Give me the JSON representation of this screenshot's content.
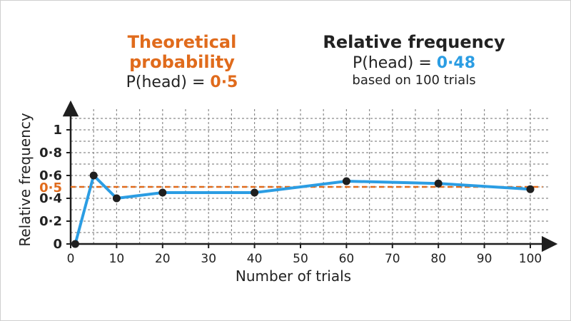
{
  "header": {
    "theory": {
      "title": "Theoretical probability",
      "eq_prefix": "P(head) = ",
      "eq_value": "0·5"
    },
    "relative": {
      "title": "Relative frequency",
      "eq_prefix": "P(head) = ",
      "eq_value": "0·48",
      "note": "based on 100 trials"
    }
  },
  "colors": {
    "line": "#2b9de3",
    "reference": "#e06b1c",
    "points": "#1f1f1f",
    "grid": "#8a8a8a",
    "axis": "#1f1f1f"
  },
  "chart_data": {
    "type": "line",
    "xlabel": "Number of trials",
    "ylabel": "Relative frequency",
    "xlim": [
      0,
      100
    ],
    "ylim": [
      0,
      1
    ],
    "grid": true,
    "x_ticks": [
      0,
      10,
      20,
      30,
      40,
      50,
      60,
      70,
      80,
      90,
      100
    ],
    "x_tick_labels": [
      "0",
      "10",
      "20",
      "30",
      "40",
      "50",
      "60",
      "70",
      "80",
      "90",
      "100"
    ],
    "y_ticks": [
      0,
      0.2,
      0.4,
      0.6,
      0.8,
      1
    ],
    "y_tick_labels": [
      "0",
      "0·2",
      "0·4",
      "0·6",
      "0·8",
      "1"
    ],
    "reference_line": {
      "y": 0.5,
      "label": "0·5"
    },
    "series": [
      {
        "x": [
          1,
          5,
          10,
          20,
          40,
          60,
          80,
          100
        ],
        "y": [
          0,
          0.6,
          0.4,
          0.45,
          0.45,
          0.55,
          0.53,
          0.48
        ]
      }
    ]
  }
}
